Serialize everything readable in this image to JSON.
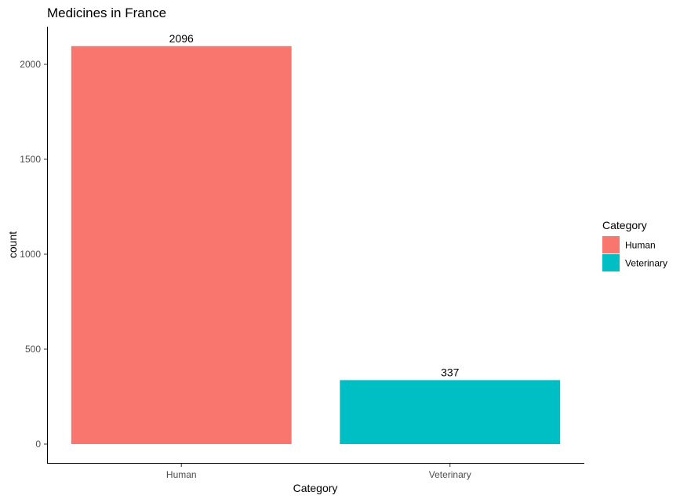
{
  "chart_data": {
    "type": "bar",
    "title": "Medicines in France",
    "xlabel": "Category",
    "ylabel": "count",
    "categories": [
      "Human",
      "Veterinary"
    ],
    "values": [
      2096,
      337
    ],
    "data_labels": [
      "2096",
      "337"
    ],
    "ylim": [
      0,
      2200
    ],
    "yticks": [
      0,
      500,
      1000,
      1500,
      2000
    ],
    "grid": false,
    "legend": {
      "title": "Category",
      "placement": "right",
      "entries": [
        "Human",
        "Veterinary"
      ]
    },
    "colors": [
      "#F8766D",
      "#00BFC4"
    ]
  }
}
